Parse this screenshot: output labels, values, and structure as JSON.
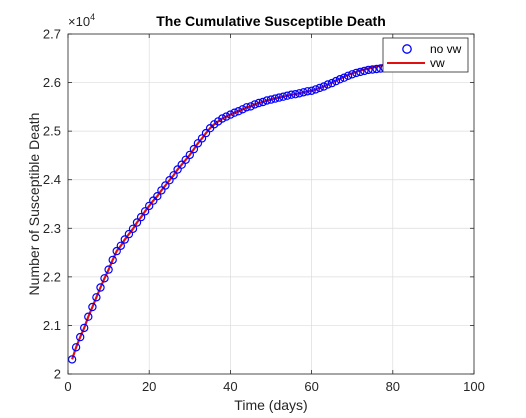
{
  "chart_data": {
    "type": "line",
    "title": "The Cumulative Susceptible Death",
    "xlabel": "Time (days)",
    "ylabel": "Number of Susceptible Death",
    "y_exponent_label": "×10",
    "y_exponent_power": "4",
    "xlim": [
      0,
      100
    ],
    "ylim": [
      20000,
      27000
    ],
    "xticks": [
      0,
      20,
      40,
      60,
      80,
      100
    ],
    "xtick_labels": [
      "0",
      "20",
      "40",
      "60",
      "80",
      "100"
    ],
    "yticks": [
      20000,
      21000,
      22000,
      23000,
      24000,
      25000,
      26000,
      27000
    ],
    "ytick_labels": [
      "2",
      "2.1",
      "2.2",
      "2.3",
      "2.4",
      "2.5",
      "2.6",
      "2.7"
    ],
    "grid": true,
    "legend_position": "top-right",
    "colors": {
      "no_vw": "#0000ff",
      "vw": "#e01010"
    },
    "x": [
      1,
      2,
      3,
      4,
      5,
      6,
      7,
      8,
      9,
      10,
      11,
      12,
      13,
      14,
      15,
      16,
      17,
      18,
      19,
      20,
      21,
      22,
      23,
      24,
      25,
      26,
      27,
      28,
      29,
      30,
      31,
      32,
      33,
      34,
      35,
      36,
      37,
      38,
      39,
      40,
      41,
      42,
      43,
      44,
      45,
      46,
      47,
      48,
      49,
      50,
      51,
      52,
      53,
      54,
      55,
      56,
      57,
      58,
      59,
      60,
      61,
      62,
      63,
      64,
      65,
      66,
      67,
      68,
      69,
      70,
      71,
      72,
      73,
      74,
      75,
      76,
      77,
      78,
      79,
      80,
      81,
      82
    ],
    "series": [
      {
        "name": "no vw",
        "style": "markers",
        "values": [
          20300,
          20550,
          20760,
          20950,
          21180,
          21380,
          21580,
          21780,
          21970,
          22150,
          22350,
          22530,
          22640,
          22770,
          22880,
          22990,
          23120,
          23230,
          23350,
          23460,
          23570,
          23660,
          23780,
          23880,
          23990,
          24090,
          24210,
          24310,
          24410,
          24510,
          24630,
          24750,
          24850,
          24960,
          25060,
          25140,
          25200,
          25260,
          25300,
          25340,
          25380,
          25410,
          25450,
          25490,
          25510,
          25550,
          25580,
          25600,
          25630,
          25650,
          25670,
          25690,
          25710,
          25730,
          25750,
          25760,
          25780,
          25800,
          25820,
          25830,
          25860,
          25890,
          25920,
          25960,
          25990,
          26030,
          26070,
          26100,
          26140,
          26170,
          26200,
          26220,
          26240,
          26260,
          26270,
          26280,
          26290,
          26300,
          26310,
          26320,
          26330,
          26340
        ]
      },
      {
        "name": "vw",
        "style": "line",
        "values": [
          20300,
          20550,
          20760,
          20950,
          21180,
          21380,
          21580,
          21780,
          21970,
          22150,
          22350,
          22530,
          22640,
          22770,
          22880,
          22990,
          23120,
          23230,
          23350,
          23460,
          23570,
          23660,
          23780,
          23880,
          23990,
          24090,
          24210,
          24310,
          24410,
          24510,
          24630,
          24750,
          24850,
          24960,
          25060,
          25140,
          25200,
          25260,
          25300,
          25340,
          25380,
          25410,
          25450,
          25490,
          25510,
          25550,
          25580,
          25600,
          25630,
          25650,
          25670,
          25690,
          25710,
          25730,
          25750,
          25760,
          25780,
          25800,
          25820,
          25830,
          25860,
          25890,
          25920,
          25960,
          26000,
          26040,
          26080,
          26120,
          26160,
          26190,
          26220,
          26250,
          26270,
          26290,
          26310,
          26330,
          26350,
          26370,
          26380,
          26390,
          26400,
          26410
        ]
      }
    ]
  }
}
